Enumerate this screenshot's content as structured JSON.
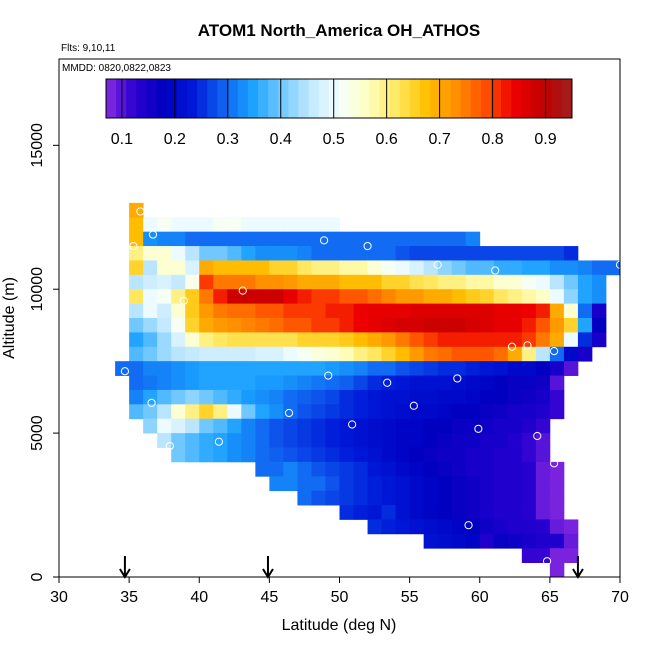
{
  "chart_data": {
    "type": "heatmap",
    "title": "ATOM1 North_America OH_ATHOS",
    "flights_note": "Flts: 9,10,11",
    "dates_note": "MMDD: 0820,0822,0823",
    "xlabel": "Latitude (deg N)",
    "ylabel": "Altitude (m)",
    "xlim": [
      30,
      70
    ],
    "ylim": [
      0,
      18000
    ],
    "x_ticks": [
      "30",
      "35",
      "40",
      "45",
      "50",
      "55",
      "60",
      "65",
      "70"
    ],
    "y_ticks": [
      "0",
      "5000",
      "10000",
      "15000"
    ],
    "colorbar": {
      "range": [
        0.07,
        0.95
      ],
      "tick_labels": [
        "0.1",
        "0.2",
        "0.3",
        "0.4",
        "0.5",
        "0.6",
        "0.7",
        "0.8",
        "0.9"
      ],
      "colors": [
        "#8A2BE2",
        "#2a00d0",
        "#0000c0",
        "#0018d8",
        "#1060f0",
        "#19a0ff",
        "#70c8ff",
        "#c0e8ff",
        "#f5ffff",
        "#ffffc0",
        "#ffe860",
        "#ffc000",
        "#ff9000",
        "#ff5000",
        "#ee0000",
        "#c00000",
        "#a02020"
      ]
    },
    "arrow_latitudes": [
      34.7,
      44.9,
      67.0
    ],
    "row_height_m": 500,
    "cell_width_deg": 1,
    "rows": [
      {
        "alt": 12750,
        "x0": 35,
        "values": [
          0.7
        ]
      },
      {
        "alt": 12250,
        "x0": 35,
        "values": [
          0.68,
          0.5,
          0.52,
          0.5,
          0.5,
          0.5,
          0.52,
          0.52,
          0.5,
          0.5,
          0.5,
          0.5,
          0.5,
          0.5,
          0.5
        ]
      },
      {
        "alt": 11750,
        "x0": 35,
        "values": [
          0.68,
          0.33,
          0.32,
          0.32,
          0.3,
          0.3,
          0.3,
          0.3,
          0.3,
          0.3,
          0.3,
          0.3,
          0.3,
          0.3,
          0.3,
          0.3,
          0.3,
          0.3,
          0.3,
          0.3,
          0.3,
          0.3,
          0.3,
          0.3,
          0.32
        ]
      },
      {
        "alt": 11250,
        "x0": 35,
        "values": [
          0.6,
          0.55,
          0.55,
          0.5,
          0.45,
          0.4,
          0.4,
          0.38,
          0.35,
          0.33,
          0.33,
          0.33,
          0.32,
          0.3,
          0.3,
          0.3,
          0.3,
          0.3,
          0.3,
          0.28,
          0.27,
          0.27,
          0.27,
          0.27,
          0.27,
          0.27,
          0.27,
          0.27,
          0.27,
          0.27,
          0.27,
          0.25
        ]
      },
      {
        "alt": 10750,
        "x0": 35,
        "values": [
          0.65,
          0.45,
          0.55,
          0.55,
          0.48,
          0.7,
          0.68,
          0.68,
          0.68,
          0.68,
          0.65,
          0.65,
          0.62,
          0.6,
          0.6,
          0.58,
          0.58,
          0.55,
          0.52,
          0.5,
          0.48,
          0.45,
          0.42,
          0.4,
          0.38,
          0.38,
          0.36,
          0.36,
          0.35,
          0.35,
          0.33,
          0.33,
          0.32,
          0.3,
          0.3,
          0.3
        ]
      },
      {
        "alt": 10250,
        "x0": 35,
        "values": [
          0.45,
          0.47,
          0.48,
          0.46,
          0.53,
          0.8,
          0.75,
          0.75,
          0.75,
          0.73,
          0.73,
          0.72,
          0.7,
          0.7,
          0.7,
          0.68,
          0.68,
          0.68,
          0.65,
          0.65,
          0.63,
          0.62,
          0.6,
          0.6,
          0.58,
          0.58,
          0.55,
          0.55,
          0.52,
          0.5,
          0.45,
          0.4,
          0.35,
          0.33
        ]
      },
      {
        "alt": 9750,
        "x0": 35,
        "values": [
          0.62,
          0.5,
          0.52,
          0.6,
          0.66,
          0.75,
          0.82,
          0.88,
          0.88,
          0.88,
          0.88,
          0.85,
          0.82,
          0.8,
          0.8,
          0.78,
          0.78,
          0.76,
          0.74,
          0.72,
          0.72,
          0.7,
          0.7,
          0.68,
          0.66,
          0.65,
          0.62,
          0.6,
          0.58,
          0.56,
          0.5,
          0.42,
          0.35,
          0.33
        ]
      },
      {
        "alt": 9250,
        "x0": 35,
        "values": [
          0.45,
          0.5,
          0.47,
          0.55,
          0.66,
          0.72,
          0.75,
          0.76,
          0.76,
          0.78,
          0.78,
          0.8,
          0.8,
          0.8,
          0.82,
          0.82,
          0.84,
          0.85,
          0.85,
          0.85,
          0.86,
          0.86,
          0.86,
          0.86,
          0.86,
          0.86,
          0.85,
          0.85,
          0.84,
          0.82,
          0.7,
          0.55,
          0.3,
          0.15
        ]
      },
      {
        "alt": 8750,
        "x0": 35,
        "values": [
          0.4,
          0.43,
          0.46,
          0.52,
          0.65,
          0.7,
          0.72,
          0.73,
          0.74,
          0.75,
          0.76,
          0.78,
          0.78,
          0.8,
          0.8,
          0.82,
          0.84,
          0.85,
          0.86,
          0.87,
          0.87,
          0.88,
          0.88,
          0.88,
          0.87,
          0.86,
          0.85,
          0.85,
          0.82,
          0.78,
          0.72,
          0.65,
          0.35,
          0.18
        ]
      },
      {
        "alt": 8250,
        "x0": 35,
        "values": [
          0.35,
          0.38,
          0.43,
          0.48,
          0.55,
          0.6,
          0.62,
          0.63,
          0.63,
          0.63,
          0.63,
          0.63,
          0.65,
          0.65,
          0.65,
          0.66,
          0.68,
          0.7,
          0.72,
          0.75,
          0.78,
          0.8,
          0.82,
          0.82,
          0.82,
          0.82,
          0.82,
          0.82,
          0.8,
          0.75,
          0.7,
          0.5,
          0.25,
          0.15
        ]
      },
      {
        "alt": 7750,
        "x0": 35,
        "values": [
          0.38,
          0.4,
          0.43,
          0.45,
          0.46,
          0.47,
          0.47,
          0.47,
          0.47,
          0.48,
          0.48,
          0.5,
          0.52,
          0.54,
          0.55,
          0.57,
          0.6,
          0.62,
          0.65,
          0.68,
          0.72,
          0.75,
          0.76,
          0.78,
          0.78,
          0.78,
          0.76,
          0.7,
          0.6,
          0.45,
          0.3,
          0.2,
          0.15
        ]
      },
      {
        "alt": 7250,
        "x0": 34,
        "values": [
          0.3,
          0.3,
          0.32,
          0.32,
          0.33,
          0.34,
          0.35,
          0.35,
          0.35,
          0.35,
          0.35,
          0.35,
          0.35,
          0.35,
          0.35,
          0.34,
          0.33,
          0.32,
          0.3,
          0.3,
          0.28,
          0.27,
          0.26,
          0.25,
          0.25,
          0.24,
          0.23,
          0.22,
          0.2,
          0.2,
          0.18,
          0.15,
          0.1
        ]
      },
      {
        "alt": 6750,
        "x0": 35,
        "values": [
          0.3,
          0.31,
          0.32,
          0.33,
          0.34,
          0.35,
          0.35,
          0.35,
          0.35,
          0.34,
          0.34,
          0.33,
          0.32,
          0.31,
          0.3,
          0.29,
          0.27,
          0.25,
          0.24,
          0.23,
          0.22,
          0.22,
          0.22,
          0.21,
          0.2,
          0.19,
          0.18,
          0.17,
          0.17,
          0.16,
          0.1
        ]
      },
      {
        "alt": 6250,
        "x0": 35,
        "values": [
          0.32,
          0.35,
          0.38,
          0.4,
          0.42,
          0.4,
          0.38,
          0.36,
          0.34,
          0.33,
          0.32,
          0.3,
          0.29,
          0.28,
          0.27,
          0.25,
          0.24,
          0.23,
          0.22,
          0.22,
          0.21,
          0.21,
          0.2,
          0.2,
          0.19,
          0.18,
          0.18,
          0.17,
          0.16,
          0.15,
          0.12
        ]
      },
      {
        "alt": 5750,
        "x0": 35,
        "values": [
          0.38,
          0.4,
          0.45,
          0.55,
          0.6,
          0.65,
          0.6,
          0.5,
          0.4,
          0.35,
          0.33,
          0.3,
          0.28,
          0.27,
          0.26,
          0.25,
          0.24,
          0.23,
          0.22,
          0.21,
          0.2,
          0.2,
          0.19,
          0.18,
          0.18,
          0.17,
          0.16,
          0.15,
          0.15,
          0.14,
          0.12
        ]
      },
      {
        "alt": 5250,
        "x0": 36,
        "values": [
          0.42,
          0.5,
          0.48,
          0.45,
          0.4,
          0.38,
          0.35,
          0.32,
          0.3,
          0.28,
          0.27,
          0.26,
          0.25,
          0.24,
          0.23,
          0.22,
          0.21,
          0.2,
          0.19,
          0.19,
          0.18,
          0.18,
          0.17,
          0.17,
          0.16,
          0.15,
          0.15,
          0.14,
          0.12
        ]
      },
      {
        "alt": 4750,
        "x0": 37,
        "values": [
          0.45,
          0.4,
          0.38,
          0.36,
          0.35,
          0.33,
          0.32,
          0.3,
          0.28,
          0.27,
          0.26,
          0.25,
          0.24,
          0.23,
          0.22,
          0.21,
          0.2,
          0.19,
          0.19,
          0.18,
          0.17,
          0.16,
          0.16,
          0.15,
          0.15,
          0.14,
          0.12,
          0.1
        ]
      },
      {
        "alt": 4250,
        "x0": 38,
        "values": [
          0.4,
          0.38,
          0.36,
          0.35,
          0.33,
          0.32,
          0.3,
          0.29,
          0.28,
          0.27,
          0.26,
          0.25,
          0.24,
          0.23,
          0.22,
          0.2,
          0.19,
          0.18,
          0.17,
          0.16,
          0.16,
          0.15,
          0.15,
          0.14,
          0.14,
          0.12,
          0.1
        ]
      },
      {
        "alt": 3750,
        "x0": 44,
        "values": [
          0.3,
          0.3,
          0.32,
          0.3,
          0.28,
          0.27,
          0.26,
          0.25,
          0.23,
          0.22,
          0.2,
          0.19,
          0.18,
          0.17,
          0.16,
          0.15,
          0.15,
          0.14,
          0.14,
          0.13,
          0.09,
          0.08
        ]
      },
      {
        "alt": 3250,
        "x0": 45,
        "values": [
          0.32,
          0.32,
          0.3,
          0.3,
          0.28,
          0.26,
          0.25,
          0.24,
          0.23,
          0.22,
          0.2,
          0.19,
          0.18,
          0.17,
          0.16,
          0.15,
          0.14,
          0.14,
          0.13,
          0.09,
          0.08
        ]
      },
      {
        "alt": 2750,
        "x0": 47,
        "values": [
          0.3,
          0.28,
          0.27,
          0.26,
          0.25,
          0.24,
          0.23,
          0.22,
          0.2,
          0.19,
          0.18,
          0.17,
          0.16,
          0.15,
          0.14,
          0.14,
          0.13,
          0.09,
          0.08
        ]
      },
      {
        "alt": 2250,
        "x0": 50,
        "values": [
          0.25,
          0.24,
          0.23,
          0.25,
          0.22,
          0.2,
          0.19,
          0.18,
          0.17,
          0.16,
          0.15,
          0.14,
          0.14,
          0.13,
          0.09,
          0.08
        ]
      },
      {
        "alt": 1750,
        "x0": 52,
        "values": [
          0.25,
          0.24,
          0.23,
          0.22,
          0.21,
          0.2,
          0.19,
          0.18,
          0.16,
          0.15,
          0.14,
          0.14,
          0.13,
          0.09,
          0.08
        ]
      },
      {
        "alt": 1250,
        "x0": 56,
        "values": [
          0.22,
          0.21,
          0.2,
          0.19,
          0.14,
          0.17,
          0.16,
          0.15,
          0.14,
          0.14,
          0.09
        ]
      },
      {
        "alt": 750,
        "x0": 63,
        "values": [
          0.12,
          0.12,
          0.08,
          0.08
        ]
      },
      {
        "alt": 250,
        "x0": 65,
        "values": [
          0.08
        ]
      }
    ],
    "markers": [
      {
        "lat": 35.8,
        "alt": 12700
      },
      {
        "lat": 36.7,
        "alt": 11900
      },
      {
        "lat": 35.3,
        "alt": 11500
      },
      {
        "lat": 48.9,
        "alt": 11700
      },
      {
        "lat": 52.0,
        "alt": 11500
      },
      {
        "lat": 57.0,
        "alt": 10850
      },
      {
        "lat": 61.1,
        "alt": 10650
      },
      {
        "lat": 70.0,
        "alt": 10850
      },
      {
        "lat": 43.1,
        "alt": 9950
      },
      {
        "lat": 38.9,
        "alt": 9600
      },
      {
        "lat": 62.3,
        "alt": 8000
      },
      {
        "lat": 63.4,
        "alt": 8050
      },
      {
        "lat": 65.3,
        "alt": 7850
      },
      {
        "lat": 34.7,
        "alt": 7150
      },
      {
        "lat": 49.2,
        "alt": 7000
      },
      {
        "lat": 53.4,
        "alt": 6750
      },
      {
        "lat": 58.4,
        "alt": 6900
      },
      {
        "lat": 36.6,
        "alt": 6050
      },
      {
        "lat": 46.4,
        "alt": 5700
      },
      {
        "lat": 55.3,
        "alt": 5950
      },
      {
        "lat": 50.9,
        "alt": 5300
      },
      {
        "lat": 59.9,
        "alt": 5150
      },
      {
        "lat": 64.1,
        "alt": 4900
      },
      {
        "lat": 41.4,
        "alt": 4700
      },
      {
        "lat": 37.9,
        "alt": 4550
      },
      {
        "lat": 65.3,
        "alt": 3950
      },
      {
        "lat": 59.2,
        "alt": 1800
      },
      {
        "lat": 64.8,
        "alt": 550
      }
    ]
  }
}
